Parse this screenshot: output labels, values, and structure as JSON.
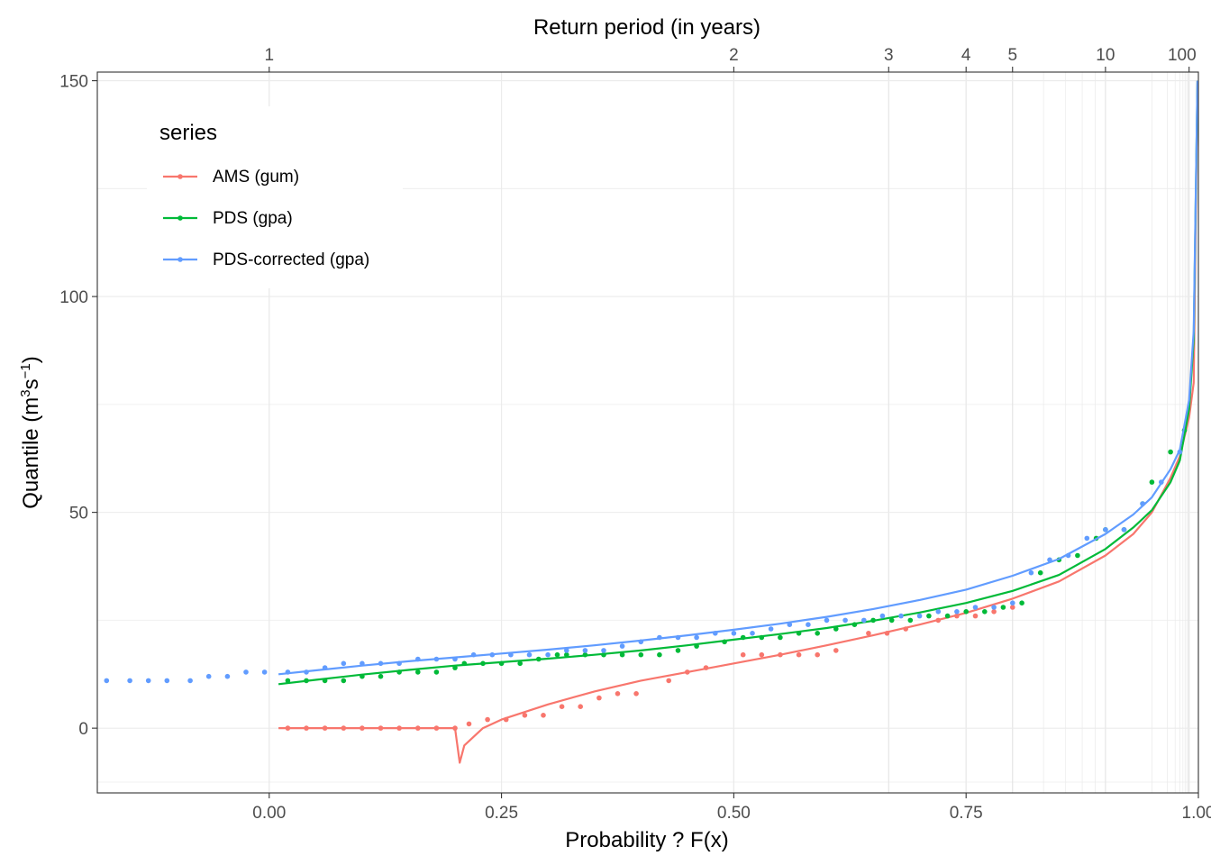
{
  "chart_data": {
    "type": "line",
    "xlabel": "Probability ? F(x)",
    "ylabel": "Quantile (m",
    "ylabel_sup1": "3",
    "ylabel_mid": "s",
    "ylabel_sup2": "−1",
    "ylabel_end": ")",
    "secondary_xlabel": "Return period (in years)",
    "xlim": [
      -0.185,
      1.0
    ],
    "ylim": [
      -15,
      152
    ],
    "x_ticks": [
      0.0,
      0.25,
      0.5,
      0.75,
      1.0
    ],
    "x_tick_labels": [
      "0.00",
      "0.25",
      "0.50",
      "0.75",
      "1.00"
    ],
    "y_ticks": [
      0,
      50,
      100,
      150
    ],
    "y_tick_labels": [
      "0",
      "50",
      "100",
      "150"
    ],
    "return_period_ticks": [
      1,
      2,
      3,
      4,
      5,
      10,
      100
    ],
    "return_period_tick_labels": [
      "1",
      "2",
      "3",
      "4",
      "5",
      "10",
      "100"
    ],
    "grid": true,
    "legend": {
      "title": "series",
      "position": "top-left",
      "entries": [
        "AMS (gum)",
        "PDS (gpa)",
        "PDS-corrected (gpa)"
      ]
    },
    "series": [
      {
        "name": "AMS (gum)",
        "color": "#F8766D",
        "curve": {
          "x": [
            0.01,
            0.05,
            0.1,
            0.15,
            0.19,
            0.2,
            0.205,
            0.21,
            0.23,
            0.25,
            0.3,
            0.35,
            0.4,
            0.45,
            0.5,
            0.55,
            0.6,
            0.65,
            0.7,
            0.75,
            0.8,
            0.85,
            0.9,
            0.93,
            0.95,
            0.97,
            0.98,
            0.99,
            0.995,
            0.999
          ],
          "y": [
            0,
            0,
            0,
            0,
            0,
            0,
            -8,
            -4,
            0,
            2,
            5.5,
            8.5,
            11,
            13,
            15,
            17,
            19.2,
            21.5,
            24,
            26.7,
            30,
            34,
            40,
            45,
            50,
            58,
            63,
            72,
            80,
            150
          ]
        },
        "points": {
          "x": [
            0.02,
            0.04,
            0.06,
            0.08,
            0.1,
            0.12,
            0.14,
            0.16,
            0.18,
            0.2,
            0.215,
            0.235,
            0.255,
            0.275,
            0.295,
            0.315,
            0.335,
            0.355,
            0.375,
            0.395,
            0.43,
            0.45,
            0.47,
            0.51,
            0.53,
            0.55,
            0.57,
            0.59,
            0.61,
            0.645,
            0.665,
            0.685,
            0.72,
            0.74,
            0.76,
            0.78,
            0.8
          ],
          "y": [
            0,
            0,
            0,
            0,
            0,
            0,
            0,
            0,
            0,
            0,
            1,
            2,
            2,
            3,
            3,
            5,
            5,
            7,
            8,
            8,
            11,
            13,
            14,
            17,
            17,
            17,
            17,
            17,
            18,
            22,
            22,
            23,
            25,
            26,
            26,
            27,
            28
          ]
        }
      },
      {
        "name": "PDS (gpa)",
        "color": "#00BA38",
        "curve": {
          "x": [
            0.01,
            0.05,
            0.1,
            0.15,
            0.2,
            0.25,
            0.3,
            0.35,
            0.4,
            0.45,
            0.5,
            0.55,
            0.6,
            0.65,
            0.7,
            0.75,
            0.8,
            0.85,
            0.9,
            0.93,
            0.95,
            0.97,
            0.98,
            0.99,
            0.995,
            0.999
          ],
          "y": [
            10.2,
            11.2,
            12.4,
            13.5,
            14.5,
            15.3,
            16.1,
            17,
            18,
            19.2,
            20.5,
            21.8,
            23.2,
            24.9,
            26.8,
            29,
            31.8,
            35.5,
            41.5,
            46.5,
            50.5,
            57,
            62,
            74,
            90,
            150
          ]
        },
        "points": {
          "x": [
            0.02,
            0.04,
            0.06,
            0.08,
            0.1,
            0.12,
            0.14,
            0.16,
            0.18,
            0.2,
            0.21,
            0.23,
            0.25,
            0.27,
            0.29,
            0.31,
            0.32,
            0.34,
            0.36,
            0.38,
            0.4,
            0.42,
            0.44,
            0.46,
            0.49,
            0.51,
            0.53,
            0.55,
            0.57,
            0.59,
            0.61,
            0.63,
            0.65,
            0.67,
            0.69,
            0.71,
            0.73,
            0.75,
            0.77,
            0.79,
            0.81,
            0.83,
            0.85,
            0.87,
            0.89,
            0.9,
            0.92,
            0.94,
            0.95,
            0.97,
            0.985
          ],
          "y": [
            11,
            11,
            11,
            11,
            12,
            12,
            13,
            13,
            13,
            14,
            15,
            15,
            15,
            15,
            16,
            17,
            17,
            17,
            17,
            17,
            17,
            17,
            18,
            19,
            20,
            21,
            21,
            21,
            22,
            22,
            23,
            24,
            25,
            25,
            25,
            26,
            26,
            27,
            27,
            28,
            29,
            36,
            39,
            40,
            44,
            46,
            46,
            52,
            57,
            64,
            69
          ]
        }
      },
      {
        "name": "PDS-corrected (gpa)",
        "color": "#619CFF",
        "curve": {
          "x": [
            0.01,
            0.05,
            0.1,
            0.15,
            0.2,
            0.25,
            0.3,
            0.35,
            0.4,
            0.45,
            0.5,
            0.55,
            0.6,
            0.65,
            0.7,
            0.75,
            0.8,
            0.85,
            0.9,
            0.93,
            0.95,
            0.97,
            0.98,
            0.99,
            0.995,
            0.999
          ],
          "y": [
            12.5,
            13.4,
            14.5,
            15.5,
            16.4,
            17.3,
            18.2,
            19.2,
            20.3,
            21.5,
            22.8,
            24.2,
            25.8,
            27.6,
            29.7,
            32.1,
            35.3,
            39.2,
            45,
            49.5,
            53.5,
            60,
            64.5,
            76,
            92,
            150
          ]
        },
        "points": {
          "x": [
            -0.175,
            -0.15,
            -0.13,
            -0.11,
            -0.085,
            -0.065,
            -0.045,
            -0.025,
            -0.005,
            0.02,
            0.04,
            0.06,
            0.08,
            0.1,
            0.12,
            0.14,
            0.16,
            0.18,
            0.2,
            0.22,
            0.24,
            0.26,
            0.28,
            0.3,
            0.32,
            0.34,
            0.36,
            0.38,
            0.4,
            0.42,
            0.44,
            0.46,
            0.48,
            0.5,
            0.52,
            0.54,
            0.56,
            0.58,
            0.6,
            0.62,
            0.64,
            0.66,
            0.68,
            0.7,
            0.72,
            0.74,
            0.76,
            0.78,
            0.8,
            0.82,
            0.84,
            0.86,
            0.88,
            0.9,
            0.92,
            0.94,
            0.96,
            0.98
          ],
          "y": [
            11,
            11,
            11,
            11,
            11,
            12,
            12,
            13,
            13,
            13,
            13,
            14,
            15,
            15,
            15,
            15,
            16,
            16,
            16,
            17,
            17,
            17,
            17,
            17,
            18,
            18,
            18,
            19,
            20,
            21,
            21,
            21,
            22,
            22,
            22,
            23,
            24,
            24,
            25,
            25,
            25,
            26,
            26,
            26,
            27,
            27,
            28,
            28,
            29,
            36,
            39,
            40,
            44,
            46,
            46,
            52,
            57,
            64
          ]
        }
      }
    ]
  }
}
